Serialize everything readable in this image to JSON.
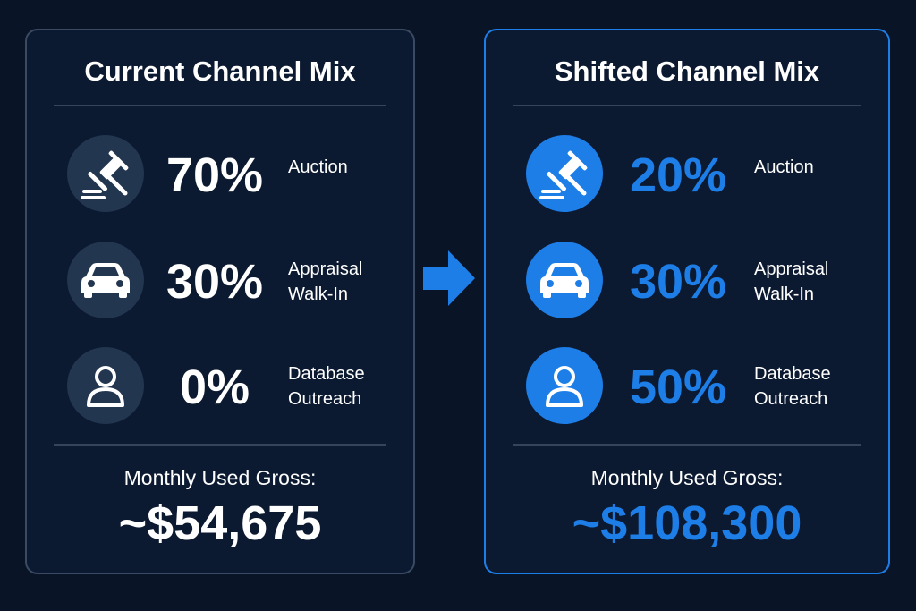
{
  "colors": {
    "background": "#0a1427",
    "accent": "#1e7ee8",
    "muted_circle": "#233650"
  },
  "current": {
    "title": "Current Channel Mix",
    "rows": [
      {
        "icon": "gavel-icon",
        "percent": "70%",
        "label1": "Auction",
        "label2": ""
      },
      {
        "icon": "car-icon",
        "percent": "30%",
        "label1": "Appraisal",
        "label2": "Walk-In"
      },
      {
        "icon": "person-icon",
        "percent": "0%",
        "label1": "Database",
        "label2": "Outreach"
      }
    ],
    "gross_label": "Monthly Used Gross:",
    "gross_value": "~$54,675"
  },
  "shifted": {
    "title": "Shifted Channel Mix",
    "rows": [
      {
        "icon": "gavel-icon",
        "percent": "20%",
        "label1": "Auction",
        "label2": ""
      },
      {
        "icon": "car-icon",
        "percent": "30%",
        "label1": "Appraisal",
        "label2": "Walk-In"
      },
      {
        "icon": "person-icon",
        "percent": "50%",
        "label1": "Database",
        "label2": "Outreach"
      }
    ],
    "gross_label": "Monthly Used Gross:",
    "gross_value": "~$108,300"
  }
}
